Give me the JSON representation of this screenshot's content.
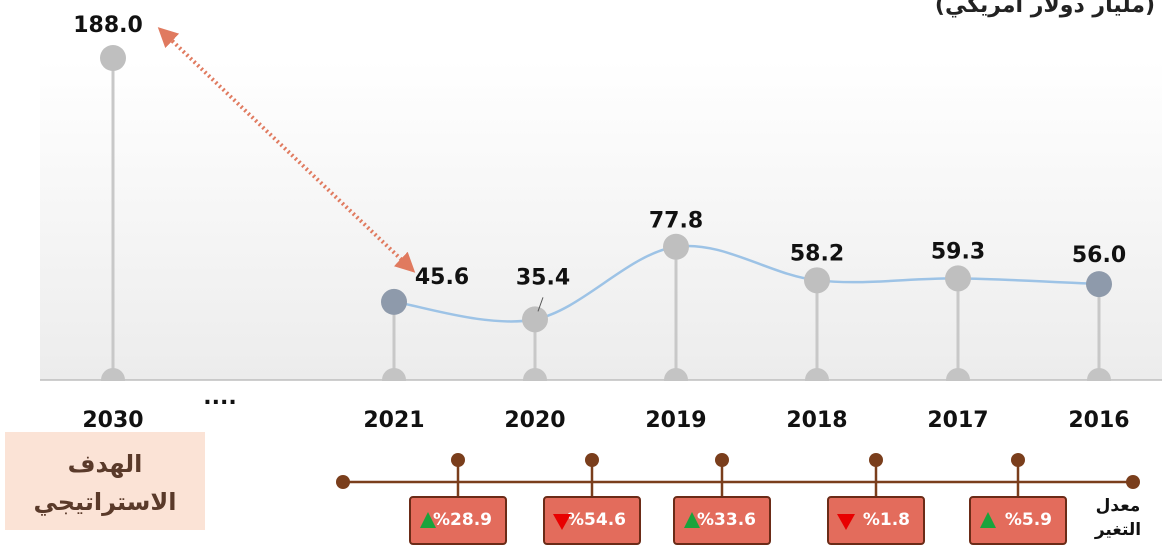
{
  "chart_data": {
    "type": "line",
    "subtitle": "(مليار دولار أمريكي)",
    "categories": [
      "2030",
      "2021",
      "2020",
      "2019",
      "2018",
      "2017",
      "2016"
    ],
    "gap_label": "....",
    "values": [
      188.0,
      45.6,
      35.4,
      77.8,
      58.2,
      59.3,
      56.0
    ],
    "value_labels": [
      "188.0",
      "45.6",
      "35.4",
      "77.8",
      "58.2",
      "59.3",
      "56.0"
    ],
    "color": "#9dc3e6",
    "marker_colors": [
      "#bfbfbf",
      "#8e9aab",
      "#bfbfbf",
      "#bfbfbf",
      "#bfbfbf",
      "#bfbfbf",
      "#8e9aab"
    ],
    "target_label": [
      "الهدف",
      "الاستراتيجي"
    ],
    "change_rate": {
      "label": [
        "معدل",
        "التغير"
      ],
      "values": [
        28.9,
        54.6,
        33.6,
        1.8,
        5.9
      ],
      "value_labels": [
        "%28.9",
        "%54.6",
        "%33.6",
        "%1.8",
        "%5.9"
      ],
      "directions": [
        "up",
        "down",
        "up",
        "down",
        "up"
      ],
      "up_color": "#1aa33c",
      "down_color": "#e80000"
    }
  }
}
